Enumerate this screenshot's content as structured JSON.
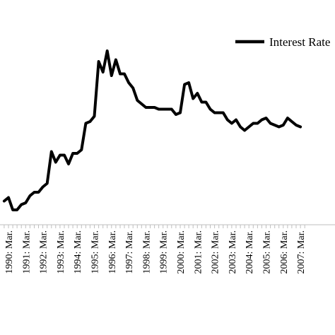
{
  "chart_data": {
    "type": "line",
    "x_axis": {
      "tick_labels": [
        "1990: Mar.",
        "1991: Mar.",
        "1992: Mar.",
        "1993: Mar.",
        "1994: Mar.",
        "1995: Mar.",
        "1996: Mar.",
        "1997: Mar.",
        "1998: Mar.",
        "1999: Mar.",
        "2000: Mar.",
        "2001: Mar.",
        "2002: Mar.",
        "2003: Mar.",
        "2004: Mar.",
        "2005: Mar.",
        "2006: Mar.",
        "2007: Mar."
      ]
    },
    "series": [
      {
        "name": "Interest Rate",
        "color": "#000000",
        "x": [
          1989.75,
          1990.0,
          1990.25,
          1990.5,
          1990.75,
          1991.0,
          1991.25,
          1991.5,
          1991.75,
          1992.0,
          1992.25,
          1992.5,
          1992.75,
          1993.0,
          1993.25,
          1993.5,
          1993.75,
          1994.0,
          1994.25,
          1994.5,
          1994.75,
          1995.0,
          1995.25,
          1995.5,
          1995.75,
          1996.0,
          1996.25,
          1996.5,
          1996.75,
          1997.0,
          1997.25,
          1997.5,
          1997.75,
          1998.0,
          1998.25,
          1998.5,
          1998.75,
          1999.0,
          1999.25,
          1999.5,
          1999.75,
          2000.0,
          2000.25,
          2000.5,
          2000.75,
          2001.0,
          2001.25,
          2001.5,
          2001.75,
          2002.0,
          2002.25,
          2002.5,
          2002.75,
          2003.0,
          2003.25,
          2003.5,
          2003.75,
          2004.0,
          2004.25,
          2004.5,
          2004.75,
          2005.0,
          2005.25,
          2005.5,
          2005.75,
          2006.0,
          2006.25,
          2006.5,
          2006.75,
          2007.0
        ],
        "values": [
          3.0,
          3.2,
          2.5,
          2.5,
          2.8,
          2.9,
          3.3,
          3.5,
          3.5,
          3.8,
          4.0,
          5.8,
          5.2,
          5.6,
          5.6,
          5.1,
          5.7,
          5.7,
          5.9,
          7.4,
          7.5,
          7.8,
          10.9,
          10.3,
          11.5,
          10.1,
          11.0,
          10.2,
          10.2,
          9.7,
          9.4,
          8.7,
          8.5,
          8.3,
          8.3,
          8.3,
          8.2,
          8.2,
          8.2,
          8.2,
          7.9,
          8.0,
          9.6,
          9.7,
          8.8,
          9.1,
          8.6,
          8.6,
          8.2,
          8.0,
          8.0,
          8.0,
          7.6,
          7.4,
          7.6,
          7.2,
          7.0,
          7.2,
          7.4,
          7.4,
          7.6,
          7.7,
          7.4,
          7.3,
          7.2,
          7.3,
          7.7,
          7.5,
          7.3,
          7.2
        ]
      }
    ]
  }
}
